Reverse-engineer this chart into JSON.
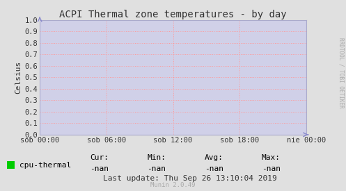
{
  "title": "ACPI Thermal zone temperatures - by day",
  "ylabel": "Celsius",
  "bg_color": "#e0e0e0",
  "plot_bg_color": "#d0d0e8",
  "grid_color": "#ff9999",
  "ylim": [
    0.0,
    1.0
  ],
  "yticks": [
    0.0,
    0.1,
    0.2,
    0.3,
    0.4,
    0.5,
    0.6,
    0.7,
    0.8,
    0.9,
    1.0
  ],
  "xtick_labels": [
    "sob 00:00",
    "sob 06:00",
    "sob 12:00",
    "sob 18:00",
    "nie 00:00"
  ],
  "legend_label": "cpu-thermal",
  "legend_color": "#00cc00",
  "cur_value": "-nan",
  "min_value": "-nan",
  "avg_value": "-nan",
  "max_value": "-nan",
  "last_update": "Last update: Thu Sep 26 13:10:04 2019",
  "munin_version": "Munin 2.0.49",
  "watermark": "RRDTOOL / TOBI OETIKER",
  "title_fontsize": 10,
  "axis_fontsize": 8,
  "tick_fontsize": 7.5,
  "small_fontsize": 6.5
}
